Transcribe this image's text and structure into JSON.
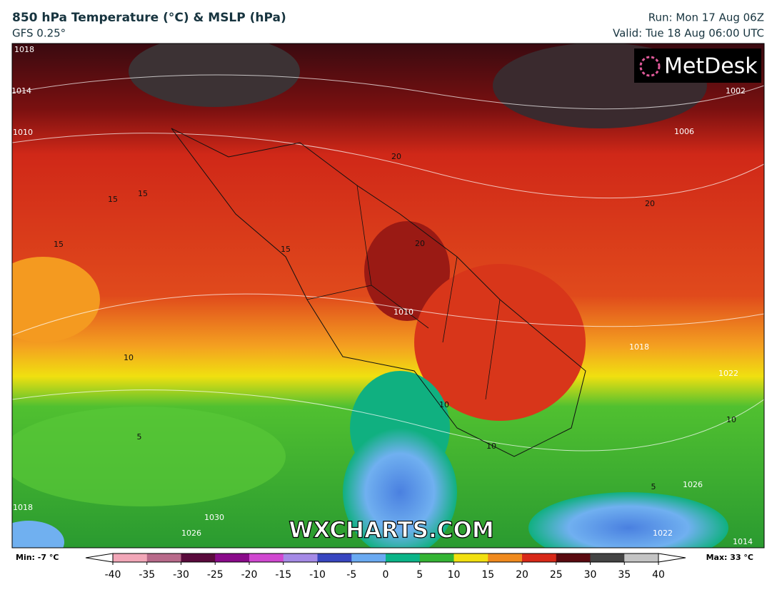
{
  "header": {
    "title": "850 hPa Temperature (°C) & MSLP (hPa)",
    "subtitle": "GFS 0.25°",
    "run": "Run: Mon 17 Aug 06Z",
    "valid": "Valid: Tue 18 Aug 06:00 UTC"
  },
  "logo": "MetDesk",
  "watermark": "WXCHARTS.COM",
  "map_labels": [
    "1018",
    "1014",
    "1010",
    "15",
    "15",
    "15",
    "15",
    "20",
    "20",
    "20",
    "1010",
    "1002",
    "1006",
    "1018",
    "1022",
    "10",
    "10",
    "10",
    "5",
    "1030",
    "1026",
    "1022",
    "1014",
    "1026",
    "5",
    "10",
    "1018"
  ],
  "colorbar": {
    "min_label": "Min: -7 °C",
    "max_label": "Max: 33 °C",
    "range": [
      -40,
      40
    ],
    "ticks": [
      -40,
      -35,
      -30,
      -25,
      -20,
      -15,
      -10,
      -5,
      0,
      5,
      10,
      15,
      20,
      25,
      30,
      35,
      40
    ],
    "colors": [
      "#f2a7b8",
      "#b86a8a",
      "#5a0a3c",
      "#8a0a8a",
      "#d048d0",
      "#a58ae6",
      "#3846c0",
      "#6aaaf2",
      "#0ab488",
      "#34b434",
      "#f2e010",
      "#f08a1e",
      "#d82818",
      "#5a0a10",
      "#444444",
      "#c4c4c4"
    ]
  }
}
